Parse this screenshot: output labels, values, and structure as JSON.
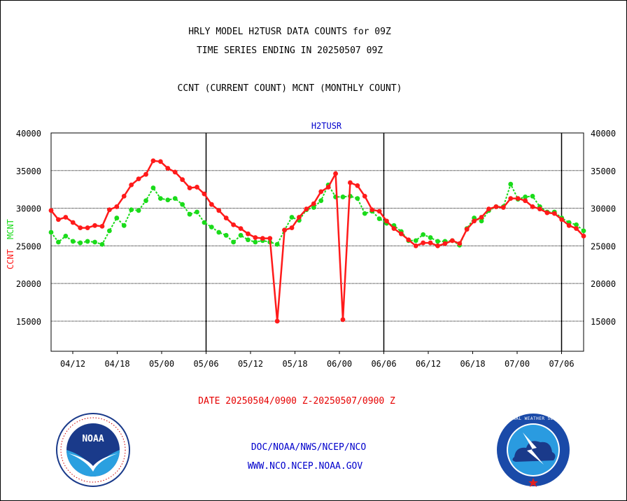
{
  "header": {
    "line1": "HRLY MODEL H2TUSR DATA COUNTS for 09Z",
    "line2": "TIME SERIES ENDING IN 20250507 09Z",
    "line3": "CCNT (CURRENT COUNT) MCNT (MONTHLY COUNT)"
  },
  "footer": {
    "date_range": "DATE 20250504/0900 Z-20250507/0900 Z",
    "org": "DOC/NOAA/NWS/NCEP/NCO",
    "url": "WWW.NCO.NCEP.NOAA.GOV"
  },
  "logos": {
    "noaa_text": "NOAA",
    "nws_text": "NATIONAL WEATHER SERVICE"
  },
  "colors": {
    "ccnt": "#ff1a1a",
    "mcnt": "#1adb1a",
    "title": "#0000cc",
    "date": "#e60000"
  },
  "chart_data": {
    "type": "line",
    "title": "H2TUSR",
    "ylabel_ccnt": "CCNT",
    "ylabel_mcnt": "MCNT",
    "ylim": [
      11000,
      40000
    ],
    "yticks": [
      15000,
      20000,
      25000,
      30000,
      35000,
      40000
    ],
    "xticks": [
      "04/12",
      "04/18",
      "05/00",
      "05/06",
      "05/12",
      "05/18",
      "06/00",
      "06/06",
      "06/12",
      "06/18",
      "07/00",
      "07/06"
    ],
    "day_boundaries": [
      "05/06",
      "06/06",
      "07/06"
    ],
    "grid": true,
    "series": [
      {
        "name": "CCNT",
        "values": [
          29700,
          28500,
          28800,
          28100,
          27400,
          27400,
          27700,
          27600,
          29800,
          30200,
          31600,
          33100,
          33900,
          34500,
          36300,
          36200,
          35300,
          34800,
          33800,
          32700,
          32800,
          31900,
          30500,
          29700,
          28700,
          27800,
          27300,
          26600,
          26100,
          26000,
          26000,
          15000,
          27100,
          27400,
          28800,
          29900,
          30600,
          32200,
          32800,
          34600,
          15200,
          33400,
          33000,
          31600,
          29800,
          29600,
          28300,
          27300,
          26600,
          25800,
          25000,
          25400,
          25400,
          25000,
          25300,
          25700,
          25300,
          27200,
          28300,
          28800,
          29900,
          30200,
          30100,
          31300,
          31300,
          31000,
          30200,
          29900,
          29400,
          29300,
          28500,
          27700,
          27300,
          26300
        ]
      },
      {
        "name": "MCNT",
        "values": [
          26800,
          25500,
          26300,
          25600,
          25400,
          25600,
          25500,
          25200,
          27000,
          28700,
          27700,
          29800,
          29700,
          31000,
          32700,
          31300,
          31100,
          31300,
          30500,
          29200,
          29500,
          28100,
          27500,
          26800,
          26400,
          25500,
          26400,
          25800,
          25500,
          25700,
          25500,
          25200,
          27100,
          28800,
          28400,
          29800,
          30100,
          31000,
          33100,
          31500,
          31500,
          31600,
          31300,
          29300,
          29600,
          28600,
          28000,
          27700,
          26900,
          25700,
          25700,
          26500,
          26100,
          25600,
          25600,
          25700,
          25100,
          27300,
          28700,
          28300,
          29700,
          30200,
          30200,
          33200,
          31200,
          31500,
          31600,
          30200,
          29500,
          29500,
          28700,
          28100,
          27800,
          27000
        ]
      }
    ]
  }
}
